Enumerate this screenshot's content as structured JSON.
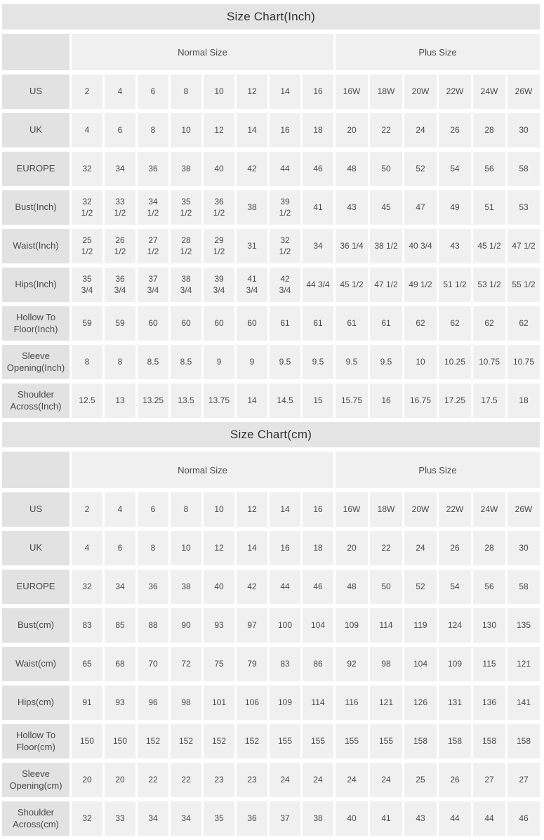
{
  "colors": {
    "page_background": "#ffffff",
    "title_row_background": "#e4e4e4",
    "label_column_background": "#e2e2e2",
    "data_cell_background": "#f0f0f0",
    "text": "#4a4a4a",
    "title_text": "#333333"
  },
  "chart_data": [
    {
      "type": "table",
      "title": "Size Chart(Inch)",
      "column_groups": [
        {
          "label": "Normal Size",
          "span": 8
        },
        {
          "label": "Plus Size",
          "span": 6
        }
      ],
      "rows": [
        {
          "label": "US",
          "values": [
            "2",
            "4",
            "6",
            "8",
            "10",
            "12",
            "14",
            "16",
            "16W",
            "18W",
            "20W",
            "22W",
            "24W",
            "26W"
          ]
        },
        {
          "label": "UK",
          "values": [
            "4",
            "6",
            "8",
            "10",
            "12",
            "14",
            "16",
            "18",
            "20",
            "22",
            "24",
            "26",
            "28",
            "30"
          ]
        },
        {
          "label": "EUROPE",
          "values": [
            "32",
            "34",
            "36",
            "38",
            "40",
            "42",
            "44",
            "46",
            "48",
            "50",
            "52",
            "54",
            "56",
            "58"
          ]
        },
        {
          "label": "Bust(Inch)",
          "values": [
            "32\n1/2",
            "33\n1/2",
            "34\n1/2",
            "35\n1/2",
            "36\n1/2",
            "38",
            "39\n1/2",
            "41",
            "43",
            "45",
            "47",
            "49",
            "51",
            "53"
          ]
        },
        {
          "label": "Waist(Inch)",
          "values": [
            "25\n1/2",
            "26\n1/2",
            "27\n1/2",
            "28\n1/2",
            "29\n1/2",
            "31",
            "32\n1/2",
            "34",
            "36 1/4",
            "38 1/2",
            "40 3/4",
            "43",
            "45 1/2",
            "47 1/2"
          ]
        },
        {
          "label": "Hips(Inch)",
          "values": [
            "35\n3/4",
            "36\n3/4",
            "37\n3/4",
            "38\n3/4",
            "39\n3/4",
            "41\n3/4",
            "42\n3/4",
            "44 3/4",
            "45 1/2",
            "47 1/2",
            "49 1/2",
            "51 1/2",
            "53 1/2",
            "55 1/2"
          ]
        },
        {
          "label": "Hollow To\nFloor(Inch)",
          "values": [
            "59",
            "59",
            "60",
            "60",
            "60",
            "60",
            "61",
            "61",
            "61",
            "61",
            "62",
            "62",
            "62",
            "62"
          ]
        },
        {
          "label": "Sleeve\nOpening(Inch)",
          "values": [
            "8",
            "8",
            "8.5",
            "8.5",
            "9",
            "9",
            "9.5",
            "9.5",
            "9.5",
            "9.5",
            "10",
            "10.25",
            "10.75",
            "10.75"
          ]
        },
        {
          "label": "Shoulder\nAcross(Inch)",
          "values": [
            "12.5",
            "13",
            "13.25",
            "13.5",
            "13.75",
            "14",
            "14.5",
            "15",
            "15.75",
            "16",
            "16.75",
            "17.25",
            "17.5",
            "18"
          ]
        }
      ]
    },
    {
      "type": "table",
      "title": "Size Chart(cm)",
      "column_groups": [
        {
          "label": "Normal Size",
          "span": 8
        },
        {
          "label": "Plus Size",
          "span": 6
        }
      ],
      "rows": [
        {
          "label": "US",
          "values": [
            "2",
            "4",
            "6",
            "8",
            "10",
            "12",
            "14",
            "16",
            "16W",
            "18W",
            "20W",
            "22W",
            "24W",
            "26W"
          ]
        },
        {
          "label": "UK",
          "values": [
            "4",
            "6",
            "8",
            "10",
            "12",
            "14",
            "16",
            "18",
            "20",
            "22",
            "24",
            "26",
            "28",
            "30"
          ]
        },
        {
          "label": "EUROPE",
          "values": [
            "32",
            "34",
            "36",
            "38",
            "40",
            "42",
            "44",
            "46",
            "48",
            "50",
            "52",
            "54",
            "56",
            "58"
          ]
        },
        {
          "label": "Bust(cm)",
          "values": [
            "83",
            "85",
            "88",
            "90",
            "93",
            "97",
            "100",
            "104",
            "109",
            "114",
            "119",
            "124",
            "130",
            "135"
          ]
        },
        {
          "label": "Waist(cm)",
          "values": [
            "65",
            "68",
            "70",
            "72",
            "75",
            "79",
            "83",
            "86",
            "92",
            "98",
            "104",
            "109",
            "115",
            "121"
          ]
        },
        {
          "label": "Hips(cm)",
          "values": [
            "91",
            "93",
            "96",
            "98",
            "101",
            "106",
            "109",
            "114",
            "116",
            "121",
            "126",
            "131",
            "136",
            "141"
          ]
        },
        {
          "label": "Hollow To\nFloor(cm)",
          "values": [
            "150",
            "150",
            "152",
            "152",
            "152",
            "152",
            "155",
            "155",
            "155",
            "155",
            "158",
            "158",
            "158",
            "158"
          ]
        },
        {
          "label": "Sleeve\nOpening(cm)",
          "values": [
            "20",
            "20",
            "22",
            "22",
            "23",
            "23",
            "24",
            "24",
            "24",
            "24",
            "25",
            "26",
            "27",
            "27"
          ]
        },
        {
          "label": "Shoulder\nAcross(cm)",
          "values": [
            "32",
            "33",
            "34",
            "34",
            "35",
            "36",
            "37",
            "38",
            "40",
            "41",
            "43",
            "44",
            "44",
            "46"
          ]
        }
      ]
    }
  ]
}
